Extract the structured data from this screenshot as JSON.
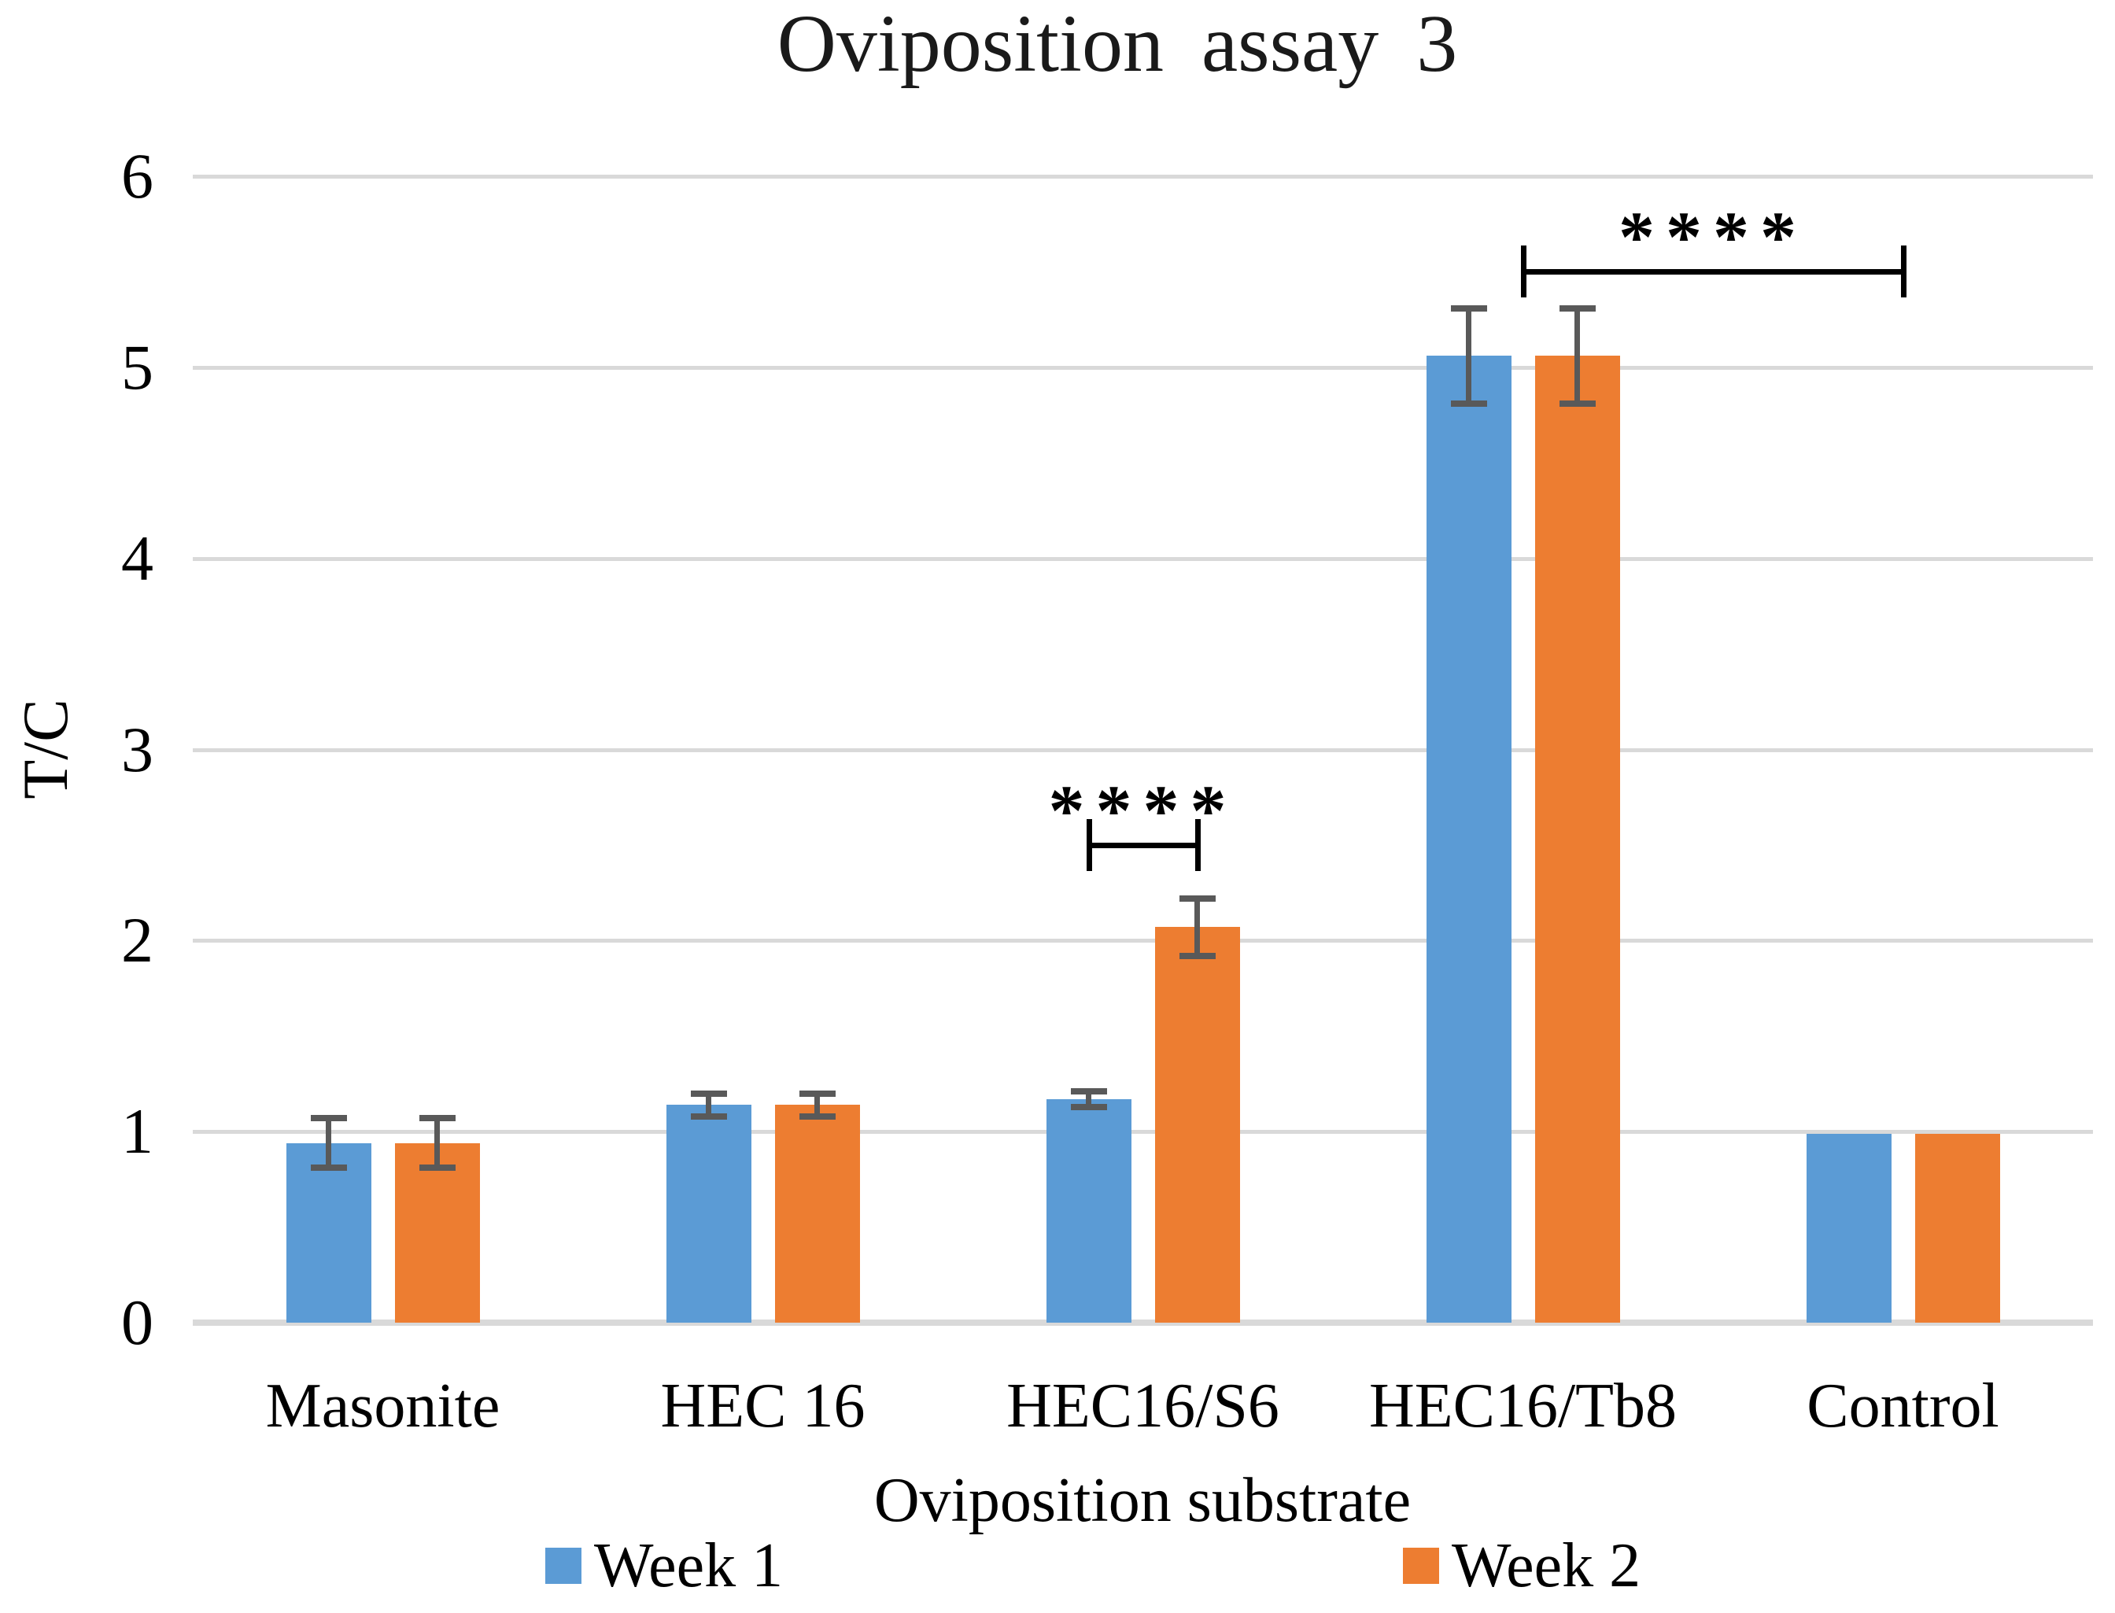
{
  "title": "Oviposition assay 3",
  "chart_data": {
    "type": "bar",
    "title": "Oviposition assay 3",
    "xlabel": "Oviposition substrate",
    "ylabel": "T/C",
    "ylim": [
      0,
      6
    ],
    "ytick_labels": [
      "0",
      "1",
      "2",
      "3",
      "4",
      "5",
      "6"
    ],
    "grid": true,
    "legend_position": "bottom",
    "categories": [
      "Masonite",
      "HEC 16",
      "HEC16/S6",
      "HEC16/Tb8",
      "Control"
    ],
    "series": [
      {
        "name": "Week 1",
        "color": "#5B9BD5",
        "values": [
          0.94,
          1.14,
          1.17,
          5.06,
          0.99
        ],
        "errors": [
          0.13,
          0.06,
          0.04,
          0.25,
          0
        ]
      },
      {
        "name": "Week 2",
        "color": "#ED7D31",
        "values": [
          0.94,
          1.14,
          2.07,
          5.06,
          0.99
        ],
        "errors": [
          0.13,
          0.06,
          0.15,
          0.25,
          0
        ]
      }
    ],
    "annotations": [
      {
        "type": "bracket",
        "label": "****",
        "y": 2.5,
        "category_from": 2,
        "series_from": 0,
        "category_to": 2,
        "series_to": 1
      },
      {
        "type": "bracket",
        "label": "****",
        "y": 5.5,
        "category_from": 3,
        "series_from": null,
        "category_to": 4,
        "series_to": null
      }
    ],
    "colors": {
      "gridline": "#D9D9D9",
      "error_bar": "#595959",
      "annotation": "#000000",
      "text": "#000000"
    }
  }
}
